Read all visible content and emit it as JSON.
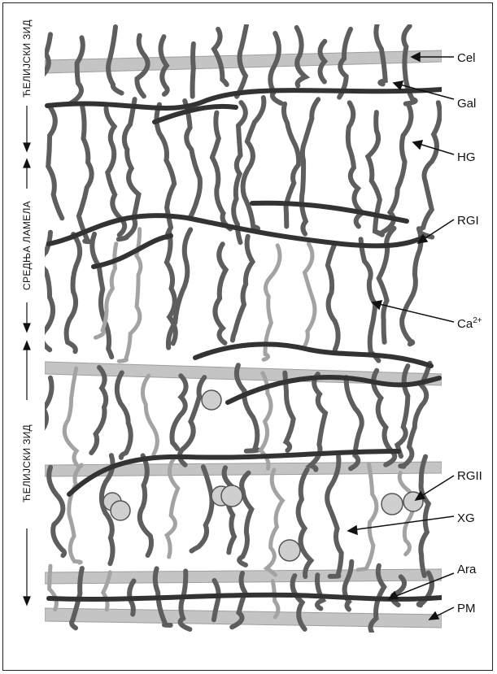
{
  "side_labels": {
    "top": "ЋЕЛИЈСКИ ЗИД",
    "middle": "СРЕДЊА ЛАМЕЛА",
    "bottom": "ЋЕЛИЈСКИ ЗИД"
  },
  "labels": {
    "cel": "Cel",
    "gal": "Gal",
    "hg": "HG",
    "rgi": "RGI",
    "ca_base": "Ca",
    "ca_sup": "2+",
    "rgii": "RGII",
    "xg": "XG",
    "ara": "Ara",
    "pm": "PM"
  },
  "colors": {
    "cellulose": "#b3b3b3",
    "pectin_chain": "#3a3a3a",
    "strand": "#6a6a6a",
    "light_strand": "#9a9a9a",
    "rg2_blob": "#cfcfcf",
    "line": "#111111"
  }
}
